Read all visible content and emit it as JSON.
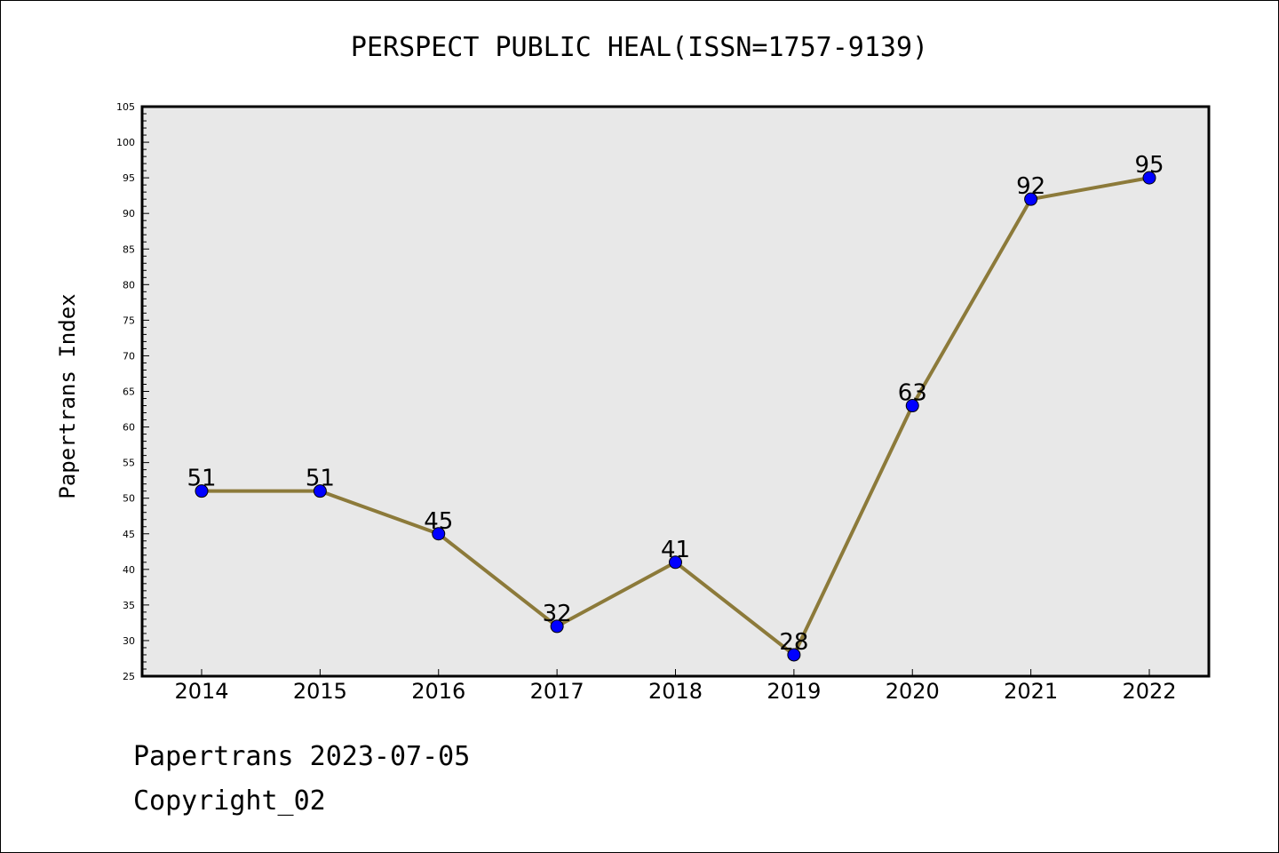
{
  "chart_data": {
    "type": "line",
    "title": "PERSPECT PUBLIC HEAL(ISSN=1757-9139)",
    "xlabel": "",
    "ylabel": "Papertrans Index",
    "categories": [
      "2014",
      "2015",
      "2016",
      "2017",
      "2018",
      "2019",
      "2020",
      "2021",
      "2022"
    ],
    "series": [
      {
        "values": [
          51,
          51,
          45,
          32,
          41,
          28,
          63,
          92,
          95
        ]
      }
    ],
    "ylim": [
      25,
      105
    ],
    "yticks": [
      25,
      30,
      35,
      40,
      45,
      50,
      55,
      60,
      65,
      70,
      75,
      80,
      85,
      90,
      95,
      100,
      105
    ],
    "grid": false,
    "data_labels": true,
    "colors": {
      "line": "#8c7a3a",
      "marker": "#0000ff",
      "plot_background": "#e8e8e8",
      "axis": "#000000"
    }
  },
  "footer": {
    "date_line": "Papertrans 2023-07-05",
    "copyright_line": "Copyright_02"
  }
}
